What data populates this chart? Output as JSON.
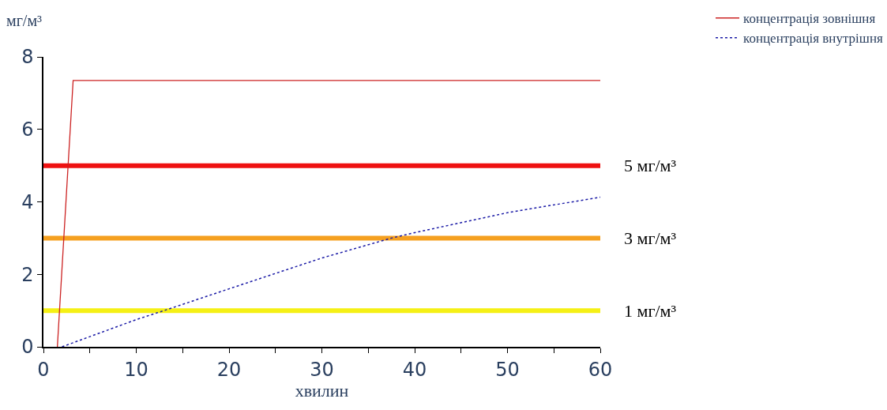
{
  "chart_data": {
    "type": "line",
    "xlabel": "хвилин",
    "ylabel": "мг/м³",
    "xlim": [
      0,
      60
    ],
    "ylim": [
      0,
      8
    ],
    "xticks": [
      0,
      {
        "value": 5,
        "label": null
      },
      10,
      {
        "value": 15,
        "label": null
      },
      20,
      {
        "value": 25,
        "label": null
      },
      30,
      {
        "value": 35,
        "label": null
      },
      40,
      {
        "value": 45,
        "label": null
      },
      50,
      {
        "value": 55,
        "label": null
      },
      60
    ],
    "yticks": [
      0,
      2,
      4,
      6,
      8
    ],
    "legend": "top right",
    "marker": "none",
    "series": [
      {
        "name": "концентрація зовнішня",
        "color": "#cc2222",
        "line_style": "solid",
        "x": [
          1.5,
          3.2,
          60
        ],
        "values": [
          0,
          7.35,
          7.35
        ]
      },
      {
        "name": "концентрація внутрішня",
        "color": "#1a1aa6",
        "line_style": "dotted",
        "x": [
          2,
          10,
          13,
          20,
          30,
          37.5,
          40,
          50,
          60
        ],
        "values": [
          0,
          0.75,
          1,
          1.6,
          2.45,
          3,
          3.15,
          3.7,
          4.13
        ]
      }
    ],
    "ref_lines": [
      {
        "axis": "y",
        "value": 5,
        "label": "5 мг/м³",
        "color": "#ee1111"
      },
      {
        "axis": "y",
        "value": 3,
        "label": "3 мг/м³",
        "color": "#f5a020"
      },
      {
        "axis": "y",
        "value": 1,
        "label": "1 мг/м³",
        "color": "#f5f015"
      }
    ]
  }
}
